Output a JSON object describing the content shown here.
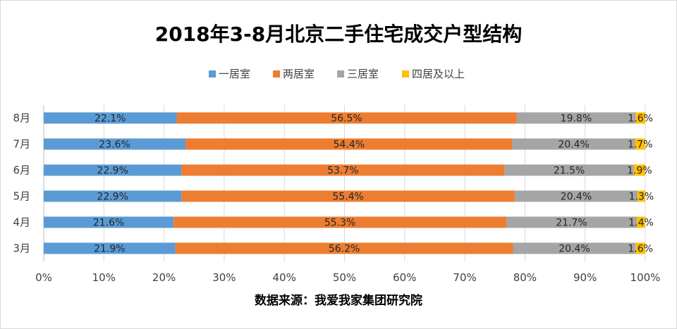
{
  "chart_data": {
    "type": "bar",
    "orientation": "horizontal",
    "stacking": "percent",
    "title": "2018年3-8月北京二手住宅成交户型结构",
    "source": "数据来源：我爱我家集团研究院",
    "categories": [
      "8月",
      "7月",
      "6月",
      "5月",
      "4月",
      "3月"
    ],
    "series": [
      {
        "name": "一居室",
        "color": "#5B9BD5",
        "values": [
          22.1,
          23.6,
          22.9,
          22.9,
          21.6,
          21.9
        ]
      },
      {
        "name": "两居室",
        "color": "#ED7D31",
        "values": [
          56.5,
          54.4,
          53.7,
          55.4,
          55.3,
          56.2
        ]
      },
      {
        "name": "三居室",
        "color": "#A5A5A5",
        "values": [
          19.8,
          20.4,
          21.5,
          20.4,
          21.7,
          20.4
        ]
      },
      {
        "name": "四居及以上",
        "color": "#FFC000",
        "values": [
          1.6,
          1.7,
          1.9,
          1.3,
          1.4,
          1.6
        ]
      }
    ],
    "xlim": [
      0,
      100
    ],
    "x_ticks": [
      "0%",
      "10%",
      "20%",
      "30%",
      "40%",
      "50%",
      "60%",
      "70%",
      "80%",
      "90%",
      "100%"
    ],
    "value_suffix": "%",
    "legend_position": "top",
    "grid": "vertical"
  }
}
